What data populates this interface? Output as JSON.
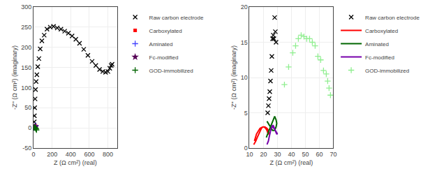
{
  "chart_data": [
    {
      "type": "scatter",
      "xlabel": "Z (Ω cm²) (real)",
      "ylabel": "-Z'' (Ω cm²) (imaginary)",
      "xlim": [
        0,
        900
      ],
      "ylim": [
        -50,
        300
      ],
      "xticks": [
        0,
        200,
        400,
        600,
        800
      ],
      "yticks": [
        -50,
        0,
        50,
        100,
        150,
        200,
        250,
        300
      ],
      "grid": true,
      "legend": "right",
      "series": [
        {
          "name": "Raw carbon electrode",
          "type": "scatter",
          "color": "#000000",
          "marker": "x",
          "x": [
            5,
            8,
            10,
            13,
            17,
            22,
            28,
            36,
            46,
            58,
            72,
            90,
            115,
            145,
            180,
            215,
            255,
            295,
            335,
            375,
            415,
            455,
            495,
            540,
            585,
            630,
            670,
            710,
            745,
            775,
            800,
            820,
            835,
            845
          ],
          "values": [
            5,
            15,
            30,
            50,
            72,
            95,
            115,
            132,
            152,
            172,
            196,
            216,
            230,
            245,
            250,
            252,
            248,
            245,
            240,
            235,
            228,
            220,
            210,
            195,
            180,
            165,
            155,
            145,
            140,
            138,
            140,
            148,
            155,
            158
          ]
        },
        {
          "name": "Carboxylated",
          "type": "scatter",
          "color": "#ff0000",
          "marker": "square",
          "x": [
            5,
            7,
            9,
            11,
            14,
            17,
            20,
            22
          ],
          "values": [
            0.5,
            1.0,
            1.5,
            2.0,
            2.5,
            3.0,
            3.5,
            4.0
          ]
        },
        {
          "name": "Aminated",
          "type": "scatter",
          "color": "#4444ff",
          "marker": "cross",
          "x": [
            5,
            8,
            11,
            14,
            18,
            22
          ],
          "values": [
            0.3,
            0.8,
            1.5,
            2.5,
            4.0,
            6.0
          ]
        },
        {
          "name": "Fc-modified",
          "type": "scatter",
          "color": "#550055",
          "marker": "star",
          "x": [
            5,
            8,
            12,
            16,
            20
          ],
          "values": [
            0.2,
            0.8,
            1.5,
            2.5,
            3.5
          ]
        },
        {
          "name": "GOD-immobilized",
          "type": "scatter",
          "color": "#006400",
          "marker": "cross",
          "x": [
            8,
            12,
            18,
            24,
            28,
            32
          ],
          "values": [
            0.5,
            1.0,
            0.5,
            -1.0,
            -3.0,
            -5.0
          ]
        }
      ]
    },
    {
      "type": "scatter",
      "xlabel": "Z (Ω cm²) (real)",
      "ylabel": "-Z'' (Ω cm²) (imaginary)",
      "xlim": [
        10,
        70
      ],
      "ylim": [
        0,
        20
      ],
      "xticks": [
        10,
        20,
        30,
        40,
        50,
        60,
        70
      ],
      "yticks": [
        0,
        5,
        10,
        15,
        20
      ],
      "grid": true,
      "legend": "right",
      "series": [
        {
          "name": "Raw carbon electrode",
          "type": "scatter",
          "color": "#000000",
          "marker": "x",
          "x": [
            23.0,
            23.5,
            24.0,
            24.5,
            25.0,
            25.5,
            26.0,
            26.5,
            27.0,
            27.5,
            28.0,
            28.5,
            29.0
          ],
          "values": [
            5.0,
            6.0,
            7.0,
            8.0,
            9.5,
            11.0,
            13.0,
            15.5,
            16.0,
            15.5,
            18.5,
            16.5,
            15.0
          ]
        },
        {
          "name": "Carboxylated",
          "type": "line",
          "color": "#ff0000",
          "x": [
            13.0,
            14.5,
            15.5,
            16.5,
            17.5,
            18.5,
            19.5,
            20.5,
            21.5,
            22.5,
            23.0,
            23.5,
            24.0,
            23.5,
            22.5,
            21.0,
            19.5,
            17.5,
            15.0,
            13.5
          ],
          "values": [
            0.5,
            1.0,
            1.5,
            2.0,
            2.5,
            2.8,
            3.0,
            3.0,
            2.8,
            2.5,
            2.2,
            2.0,
            2.0,
            2.5,
            2.8,
            3.0,
            3.0,
            2.8,
            2.0,
            1.0
          ]
        },
        {
          "name": "Aminated",
          "type": "line",
          "color": "#006600",
          "x": [
            22.0,
            23.0,
            24.0,
            25.0,
            26.0,
            27.0,
            28.0,
            29.0,
            29.5,
            29.0,
            28.0,
            26.5,
            25.0,
            23.5,
            22.5
          ],
          "values": [
            1.5,
            2.0,
            2.5,
            3.0,
            3.5,
            4.0,
            4.5,
            4.0,
            3.5,
            3.0,
            2.5,
            2.5,
            3.0,
            3.5,
            3.8
          ]
        },
        {
          "name": "Fc-modified",
          "type": "line",
          "color": "#7700aa",
          "x": [
            22.5,
            23.5,
            24.0,
            24.5,
            25.0,
            25.5,
            26.0,
            26.5,
            27.0,
            27.5,
            28.0,
            28.5,
            29.0,
            29.5,
            30.0,
            29.5,
            28.5,
            27.5,
            26.5,
            25.5
          ],
          "values": [
            0.5,
            1.0,
            1.5,
            2.0,
            2.5,
            2.8,
            3.0,
            3.2,
            3.2,
            3.0,
            2.8,
            2.5,
            2.2,
            2.0,
            2.0,
            2.2,
            2.5,
            2.8,
            3.0,
            3.0
          ]
        },
        {
          "name": "GOD-immobilized",
          "type": "scatter",
          "color": "#90ee90",
          "marker": "cross",
          "x": [
            35,
            38,
            41,
            43,
            45,
            47,
            49,
            51,
            53,
            55,
            57,
            59,
            61,
            63,
            65,
            66,
            67,
            68
          ],
          "values": [
            9.0,
            11.5,
            13.5,
            14.5,
            15.5,
            16.0,
            15.8,
            15.5,
            15.5,
            15.0,
            14.5,
            13.0,
            12.5,
            11.0,
            10.5,
            9.5,
            8.5,
            7.5
          ]
        }
      ]
    }
  ]
}
